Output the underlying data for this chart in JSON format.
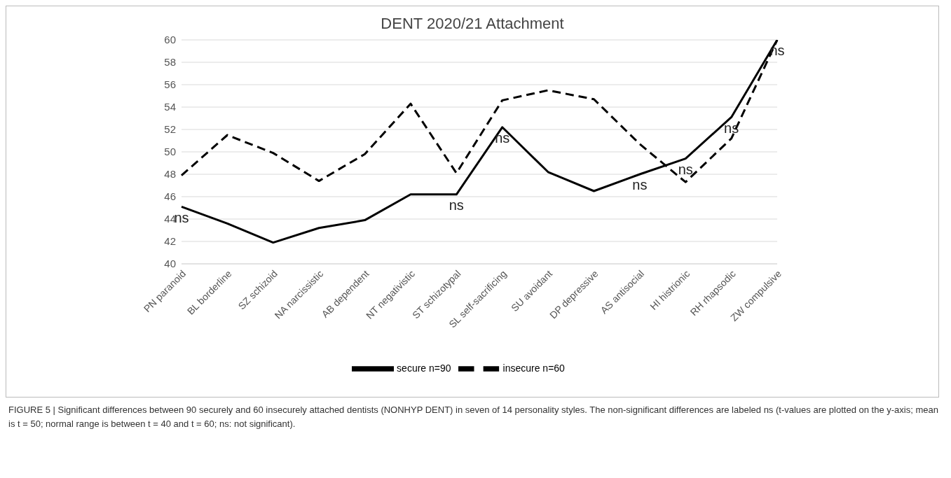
{
  "chart_data": {
    "type": "line",
    "title": "DENT 2020/21 Attachment",
    "categories": [
      "PN paranoid",
      "BL borderline",
      "SZ schizoid",
      "NA narcissistic",
      "AB dependent",
      "NT negativistic",
      "ST schizotypal",
      "SL self-sacrificing",
      "SU avoidant",
      "DP depressive",
      "AS antisocial",
      "HI histrionic",
      "RH rhapsodic",
      "ZW compulsive"
    ],
    "series": [
      {
        "name": "secure n=90",
        "color": "#000000",
        "line_style": "solid",
        "values": [
          45.1,
          43.6,
          41.9,
          43.2,
          43.9,
          46.2,
          46.2,
          52.2,
          48.2,
          46.5,
          48.0,
          49.4,
          53.1,
          60
        ],
        "value_labels": [
          "ns",
          null,
          null,
          null,
          null,
          null,
          "ns",
          "ns",
          null,
          null,
          "ns",
          "ns",
          "ns",
          "ns"
        ]
      },
      {
        "name": "insecure n=60",
        "color": "#000000",
        "line_style": "dashed",
        "values": [
          47.9,
          51.5,
          49.9,
          47.4,
          49.8,
          54.3,
          48.1,
          54.6,
          55.5,
          54.7,
          50.7,
          47.3,
          51.2,
          60
        ]
      }
    ],
    "ylim": [
      40,
      60
    ],
    "yticks": [
      40,
      42,
      44,
      46,
      48,
      50,
      52,
      54,
      56,
      58,
      60
    ],
    "grid": "y",
    "legend": "bottom",
    "marker": "none",
    "annotations": [
      "FIGURE 5 | Significant differences between 90 securely and 60 insecurely attached dentists (NONHYP DENT) in seven of 14 personality styles. The non-significant differences are labeled ns (t-values are plotted on the y-axis; mean is t = 50; normal range is between t = 40 and t = 60; ns: not significant)."
    ]
  }
}
